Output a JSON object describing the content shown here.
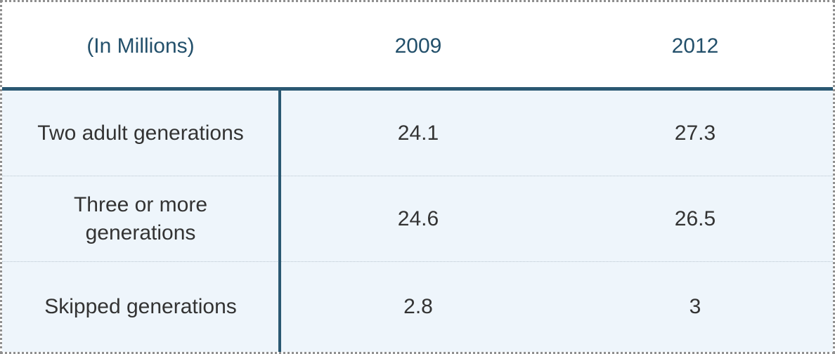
{
  "chart_data": {
    "type": "table",
    "columns": [
      "(In Millions)",
      "2009",
      "2012"
    ],
    "rows": [
      {
        "label": "Two adult generations",
        "values": [
          "24.1",
          "27.3"
        ]
      },
      {
        "label": "Three or more generations",
        "values": [
          "24.6",
          "26.5"
        ]
      },
      {
        "label": "Skipped generations",
        "values": [
          "2.8",
          "3"
        ]
      }
    ]
  },
  "colors": {
    "header_text": "#23506b",
    "rule": "#2a5872",
    "body_background": "#eef5fb",
    "body_text": "#333333"
  }
}
